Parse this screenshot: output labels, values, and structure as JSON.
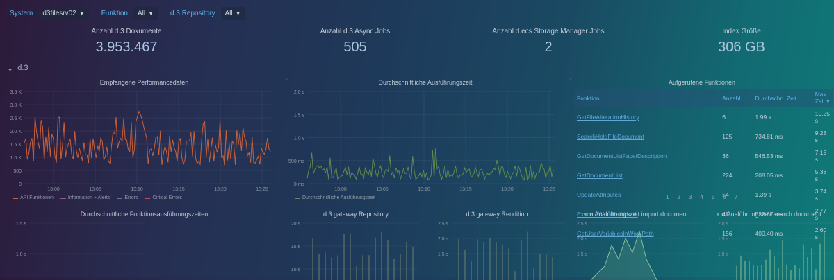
{
  "variables": [
    {
      "label": "System",
      "value": "d3filesrv02"
    },
    {
      "label": "Funktion",
      "value": "All"
    },
    {
      "label": "d.3 Repository",
      "value": "All"
    }
  ],
  "stats": [
    {
      "title": "Anzahl d.3 Dokumente",
      "value": "3.953.467"
    },
    {
      "title": "Anzahl d.3 Async Jobs",
      "value": "505"
    },
    {
      "title": "Anzahl d.ecs Storage Manager Jobs",
      "value": "2"
    },
    {
      "title": "Index Größe",
      "value": "306 GB"
    }
  ],
  "row": {
    "caret": "⌄",
    "title": "d.3"
  },
  "panels": {
    "perf": {
      "title": "Empfangene Performancedaten",
      "y_ticks": [
        "3.5 K",
        "3.0 K",
        "2.5 K",
        "2.0 K",
        "1.5 K",
        "1.0 K",
        "500",
        "0"
      ],
      "x_ticks": [
        "13:00",
        "13:05",
        "13:10",
        "13:15",
        "13:20",
        "13:25"
      ],
      "legend": [
        {
          "name": "API Funktionen",
          "color": "#c8613a"
        },
        {
          "name": "Information + Alerts",
          "color": "#8a5a8a"
        },
        {
          "name": "Errors",
          "color": "#6a7685"
        },
        {
          "name": "Critical Errors",
          "color": "#c84a5a"
        }
      ]
    },
    "avg": {
      "title": "Durchschnittliche Ausführungszeit",
      "y_ticks": [
        "2.0 s",
        "1.5 s",
        "1.0 s",
        "500 ms",
        "0 ms"
      ],
      "x_ticks": [
        "13:00",
        "13:05",
        "13:10",
        "13:15",
        "13:20",
        "13:25"
      ],
      "legend": "Durchschnittliche Ausführungszeit"
    },
    "functions": {
      "title": "Aufgerufene Funktionen",
      "columns": [
        "Funktion",
        "Anzahl",
        "Durchschn. Zeit",
        "Max. Zeit"
      ],
      "sort_caret": "▾",
      "rows": [
        [
          "GetFileAlterationHistory",
          "6",
          "1.99 s",
          "10.25 s"
        ],
        [
          "SearchHoldFileDocument",
          "125",
          "734.81 ms",
          "9.28 s"
        ],
        [
          "GetDocumentListFacetDescription",
          "36",
          "546.53 ms",
          "7.19 s"
        ],
        [
          "GetDocumentList",
          "224",
          "208.05 ms",
          "5.38 s"
        ],
        [
          "UpdateAttributes",
          "54",
          "1.39 s",
          "3.74 s"
        ],
        [
          "ExecuteWorkPathHook",
          "48",
          "526.67 ms",
          "2.77 s"
        ],
        [
          "GetUserVariablesInWorkPath",
          "156",
          "400.40 ms",
          "2.60 s"
        ]
      ],
      "pages": [
        "1",
        "2",
        "3",
        "4",
        "5",
        "6",
        "7"
      ]
    },
    "func_avg": {
      "title": "Durchschnittliche Funktionsausführungszeiten",
      "y_ticks": [
        "1.5 s",
        "1.0 s"
      ]
    },
    "gw_repo": {
      "title": "d.3 gateway Repository",
      "y_ticks": [
        "20 s",
        "15 s",
        "10 s"
      ]
    },
    "gw_rend": {
      "title": "d.3 gateway Rendition",
      "y_ticks": [
        "2.5 s",
        "2.0 s",
        "1.5 s"
      ]
    },
    "import": {
      "title": "ø Ausführungszeit import document",
      "y_ticks": [
        "2.5 s",
        "2.0 s",
        "1.5 s"
      ]
    },
    "search": {
      "title": "ø Ausführungszeit search document",
      "y_ticks": [
        "2.0 s",
        "1.5 s",
        "1.0 s"
      ]
    }
  },
  "colors": {
    "perf_line": "#c8613a",
    "avg_line": "#5f8a4a",
    "accent": "#5db2e4"
  }
}
